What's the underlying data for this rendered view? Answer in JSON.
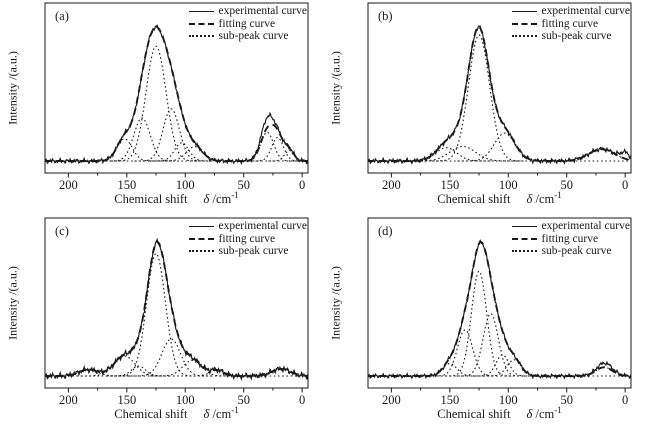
{
  "figure": {
    "background": "#ffffff",
    "line_color": "#1a1a1a",
    "ylabel": "Intensity /(a.u.)",
    "xlabel": {
      "prefix": "Chemical shift",
      "symbol": "δ",
      "unit_base": "/cm",
      "unit_sup": "-1"
    },
    "legend": [
      {
        "label": "experimental curve",
        "style": "solid"
      },
      {
        "label": "fitting curve",
        "style": "dashed"
      },
      {
        "label": "sub-peak curve",
        "style": "dotted"
      }
    ]
  },
  "chart_data": [
    {
      "type": "line",
      "panel": "(a)",
      "xlabel": "Chemical shift δ /cm⁻¹",
      "ylabel": "Intensity /(a.u.)",
      "xlim": [
        220,
        -5
      ],
      "ylim": [
        0,
        1.15
      ],
      "axis_reversed": true,
      "x_ticks": [
        200,
        150,
        100,
        50,
        0
      ],
      "x_minor_ticks": [
        175,
        125,
        75,
        25
      ],
      "series_styles": {
        "experimental": "solid",
        "fitting": "dashed",
        "sub_peak": "dotted"
      },
      "sub_peaks": [
        {
          "center": 152,
          "amplitude": 0.17,
          "sigma": 6.5
        },
        {
          "center": 137,
          "amplitude": 0.33,
          "sigma": 7
        },
        {
          "center": 125,
          "amplitude": 0.88,
          "sigma": 8.5
        },
        {
          "center": 112,
          "amplitude": 0.4,
          "sigma": 7
        },
        {
          "center": 103,
          "amplitude": 0.14,
          "sigma": 6
        },
        {
          "center": 92,
          "amplitude": 0.11,
          "sigma": 7
        },
        {
          "center": 30,
          "amplitude": 0.22,
          "sigma": 5.5
        },
        {
          "center": 21,
          "amplitude": 0.18,
          "sigma": 5
        },
        {
          "center": 11,
          "amplitude": 0.08,
          "sigma": 4
        }
      ],
      "experimental_extra": [
        {
          "center": 30,
          "amplitude": 0.08,
          "sigma": 5
        }
      ],
      "noise_amplitude": 0.013
    },
    {
      "type": "line",
      "panel": "(b)",
      "xlabel": "Chemical shift δ /cm⁻¹",
      "ylabel": "Intensity /(a.u.)",
      "xlim": [
        220,
        -5
      ],
      "ylim": [
        0,
        1.15
      ],
      "axis_reversed": true,
      "x_ticks": [
        200,
        150,
        100,
        50,
        0
      ],
      "x_minor_ticks": [
        175,
        125,
        75,
        25
      ],
      "series_styles": {
        "experimental": "solid",
        "fitting": "dashed",
        "sub_peak": "dotted"
      },
      "sub_peaks": [
        {
          "center": 153,
          "amplitude": 0.1,
          "sigma": 9
        },
        {
          "center": 139,
          "amplitude": 0.11,
          "sigma": 11
        },
        {
          "center": 125,
          "amplitude": 0.95,
          "sigma": 9
        },
        {
          "center": 103,
          "amplitude": 0.21,
          "sigma": 9
        },
        {
          "center": 20,
          "amplitude": 0.09,
          "sigma": 11
        }
      ],
      "experimental_extra": [
        {
          "center": 0,
          "amplitude": 0.05,
          "sigma": 4
        }
      ],
      "noise_amplitude": 0.013
    },
    {
      "type": "line",
      "panel": "(c)",
      "xlabel": "Chemical shift δ /cm⁻¹",
      "ylabel": "Intensity /(a.u.)",
      "xlim": [
        220,
        -5
      ],
      "ylim": [
        0,
        1.15
      ],
      "axis_reversed": true,
      "x_ticks": [
        200,
        150,
        100,
        50,
        0
      ],
      "x_minor_ticks": [
        175,
        125,
        75,
        25
      ],
      "series_styles": {
        "experimental": "solid",
        "fitting": "dashed",
        "sub_peak": "dotted"
      },
      "sub_peaks": [
        {
          "center": 183,
          "amplitude": 0.045,
          "sigma": 8
        },
        {
          "center": 152,
          "amplitude": 0.14,
          "sigma": 9
        },
        {
          "center": 140,
          "amplitude": 0.07,
          "sigma": 6
        },
        {
          "center": 125,
          "amplitude": 0.86,
          "sigma": 8
        },
        {
          "center": 112,
          "amplitude": 0.26,
          "sigma": 8
        },
        {
          "center": 94,
          "amplitude": 0.11,
          "sigma": 8
        },
        {
          "center": 73,
          "amplitude": 0.04,
          "sigma": 6
        },
        {
          "center": 18,
          "amplitude": 0.05,
          "sigma": 8
        }
      ],
      "experimental_extra": [],
      "noise_amplitude": 0.015
    },
    {
      "type": "line",
      "panel": "(d)",
      "xlabel": "Chemical shift δ /cm⁻¹",
      "ylabel": "Intensity /(a.u.)",
      "xlim": [
        220,
        -5
      ],
      "ylim": [
        0,
        1.15
      ],
      "axis_reversed": true,
      "x_ticks": [
        200,
        150,
        100,
        50,
        0
      ],
      "x_minor_ticks": [
        175,
        125,
        75,
        25
      ],
      "series_styles": {
        "experimental": "solid",
        "fitting": "dashed",
        "sub_peak": "dotted"
      },
      "sub_peaks": [
        {
          "center": 150,
          "amplitude": 0.1,
          "sigma": 6
        },
        {
          "center": 137,
          "amplitude": 0.37,
          "sigma": 6.5
        },
        {
          "center": 125,
          "amplitude": 0.84,
          "sigma": 6.5
        },
        {
          "center": 115,
          "amplitude": 0.5,
          "sigma": 6.5
        },
        {
          "center": 105,
          "amplitude": 0.17,
          "sigma": 5.5
        },
        {
          "center": 95,
          "amplitude": 0.13,
          "sigma": 6
        },
        {
          "center": 18,
          "amplitude": 0.07,
          "sigma": 7
        }
      ],
      "experimental_extra": [
        {
          "center": 17,
          "amplitude": 0.035,
          "sigma": 6
        }
      ],
      "noise_amplitude": 0.012
    }
  ]
}
